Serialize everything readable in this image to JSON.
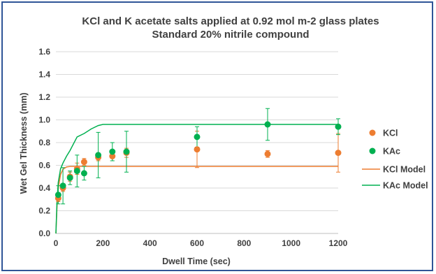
{
  "chart_data": {
    "type": "scatter",
    "title": "KCl and K acetate salts applied at 0.92 mol m-2 glass plates",
    "subtitle": "Standard 20% nitrile compound",
    "xlabel": "Dwell Time (sec)",
    "ylabel": "Wet Gel Thickness (mm)",
    "xlim": [
      0,
      1200
    ],
    "ylim": [
      0,
      1.6
    ],
    "xticks": [
      0,
      200,
      400,
      600,
      800,
      1000,
      1200
    ],
    "yticks": [
      0.0,
      0.2,
      0.4,
      0.6,
      0.8,
      1.0,
      1.2,
      1.4,
      1.6
    ],
    "grid": "horizontal",
    "legend_position": "right",
    "series": [
      {
        "name": "KCl",
        "kind": "points",
        "color": "#ed7d31",
        "points": [
          {
            "x": 10,
            "y": 0.31,
            "err": 0.03
          },
          {
            "x": 30,
            "y": 0.4,
            "err": 0.03
          },
          {
            "x": 60,
            "y": 0.5,
            "err": 0.04
          },
          {
            "x": 90,
            "y": 0.57,
            "err": 0.05
          },
          {
            "x": 120,
            "y": 0.63,
            "err": 0.03
          },
          {
            "x": 180,
            "y": 0.67,
            "err": 0.03
          },
          {
            "x": 240,
            "y": 0.68,
            "err": 0.04
          },
          {
            "x": 300,
            "y": 0.71,
            "err": 0.04
          },
          {
            "x": 600,
            "y": 0.74,
            "err": 0.16
          },
          {
            "x": 900,
            "y": 0.7,
            "err": 0.03
          },
          {
            "x": 1200,
            "y": 0.71,
            "err": 0.17
          }
        ]
      },
      {
        "name": "KAc",
        "kind": "points",
        "color": "#00b050",
        "points": [
          {
            "x": 10,
            "y": 0.34,
            "err": 0.08
          },
          {
            "x": 30,
            "y": 0.42,
            "err": 0.16
          },
          {
            "x": 60,
            "y": 0.49,
            "err": 0.06
          },
          {
            "x": 90,
            "y": 0.55,
            "err": 0.14
          },
          {
            "x": 120,
            "y": 0.53,
            "err": 0.06
          },
          {
            "x": 180,
            "y": 0.69,
            "err": 0.2
          },
          {
            "x": 240,
            "y": 0.72,
            "err": 0.08
          },
          {
            "x": 300,
            "y": 0.72,
            "err": 0.18
          },
          {
            "x": 600,
            "y": 0.85,
            "err": 0.09
          },
          {
            "x": 900,
            "y": 0.96,
            "err": 0.14
          },
          {
            "x": 1200,
            "y": 0.94,
            "err": 0.07
          }
        ]
      },
      {
        "name": "KCl Model",
        "kind": "line",
        "color": "#ed7d31",
        "x": [
          0,
          5,
          10,
          20,
          30,
          45,
          60,
          90,
          120,
          180,
          240,
          300,
          600,
          900,
          1200
        ],
        "y": [
          0.0,
          0.25,
          0.4,
          0.52,
          0.565,
          0.585,
          0.59,
          0.59,
          0.59,
          0.59,
          0.59,
          0.59,
          0.59,
          0.59,
          0.59
        ]
      },
      {
        "name": "KAc Model",
        "kind": "line",
        "color": "#00b050",
        "x": [
          0,
          5,
          10,
          20,
          30,
          45,
          60,
          90,
          120,
          150,
          180,
          200,
          240,
          300,
          600,
          900,
          1200
        ],
        "y": [
          0.0,
          0.3,
          0.45,
          0.57,
          0.62,
          0.68,
          0.73,
          0.85,
          0.88,
          0.92,
          0.95,
          0.96,
          0.96,
          0.96,
          0.96,
          0.96,
          0.96
        ]
      }
    ]
  }
}
